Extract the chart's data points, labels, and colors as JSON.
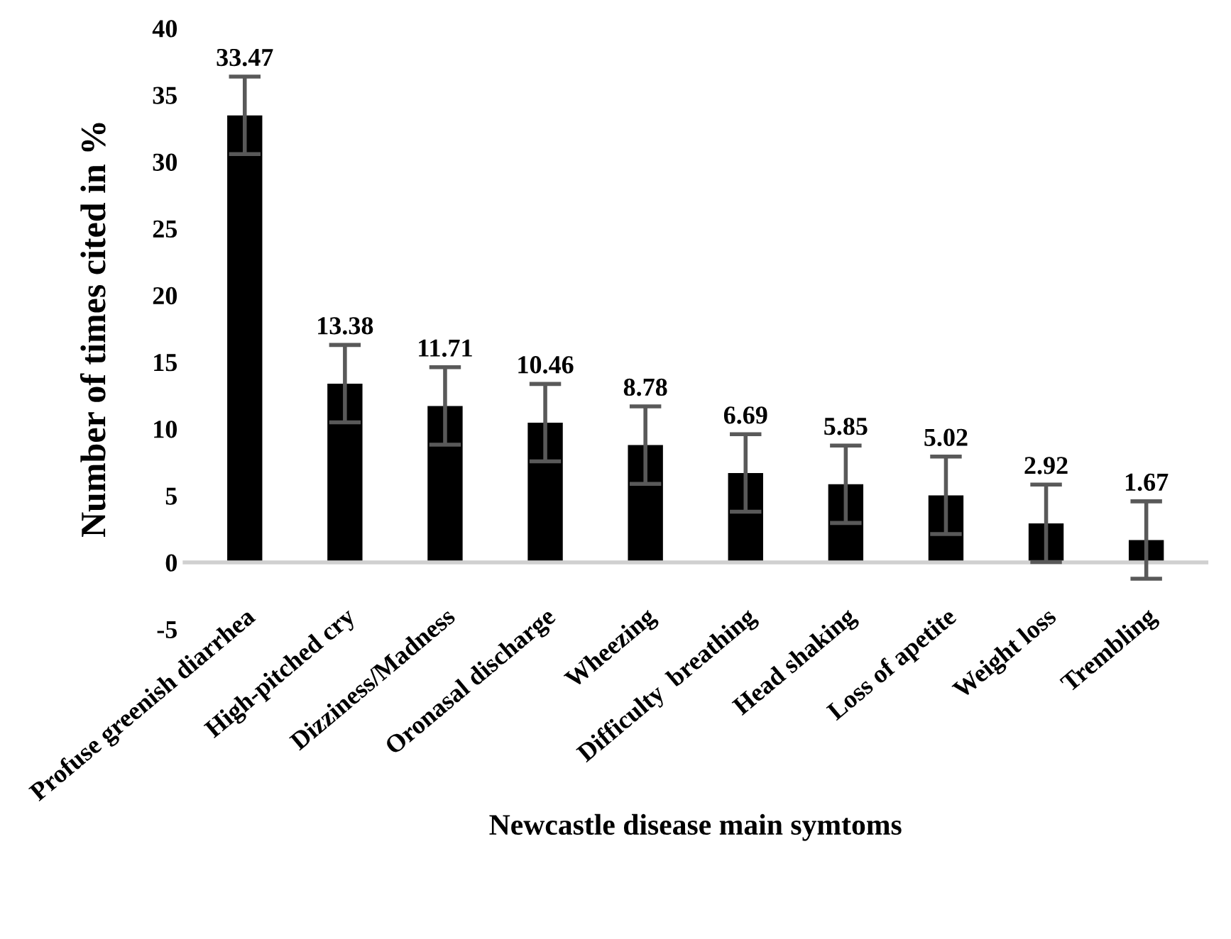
{
  "chart_data": {
    "type": "bar",
    "xlabel": "Newcastle disease main symtoms",
    "ylabel": "Number of times cited in %",
    "categories": [
      "Profuse greenish diarrhea",
      "High-pitched cry",
      "Dizziness/Madness",
      "Oronasal discharge",
      "Wheezing",
      "Difficulty  breathing",
      "Head shaking",
      "Loss of apetite",
      "Weight loss",
      "Trembling"
    ],
    "values": [
      33.47,
      13.38,
      11.71,
      10.46,
      8.78,
      6.69,
      5.85,
      5.02,
      2.92,
      1.67
    ],
    "errors": [
      2.9,
      2.9,
      2.9,
      2.9,
      2.9,
      2.9,
      2.9,
      2.9,
      2.9,
      2.9
    ],
    "color": "#000000",
    "data_labels": true,
    "ylim": [
      -5,
      40
    ],
    "yticks": [
      -5,
      0,
      5,
      10,
      15,
      20,
      25,
      30,
      35,
      40
    ],
    "grid": false,
    "legend": false
  }
}
